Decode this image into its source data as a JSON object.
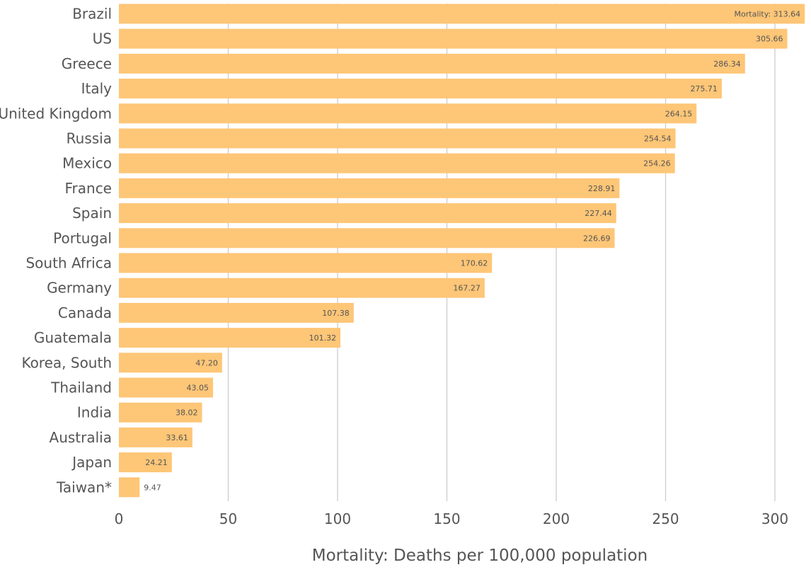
{
  "chart_data": {
    "type": "bar",
    "orientation": "horizontal",
    "categories": [
      "Brazil",
      "US",
      "Greece",
      "Italy",
      "United Kingdom",
      "Russia",
      "Mexico",
      "France",
      "Spain",
      "Portugal",
      "South Africa",
      "Germany",
      "Canada",
      "Guatemala",
      "Korea, South",
      "Thailand",
      "India",
      "Australia",
      "Japan",
      "Taiwan*"
    ],
    "values": [
      313.64,
      305.66,
      286.34,
      275.71,
      264.15,
      254.54,
      254.26,
      228.91,
      227.44,
      226.69,
      170.62,
      167.27,
      107.38,
      101.32,
      47.2,
      43.05,
      38.02,
      33.61,
      24.21,
      9.47
    ],
    "value_labels": [
      "Mortality: 313.64",
      "305.66",
      "286.34",
      "275.71",
      "264.15",
      "254.54",
      "254.26",
      "228.91",
      "227.44",
      "226.69",
      "170.62",
      "167.27",
      "107.38",
      "101.32",
      "47.20",
      "43.05",
      "38.02",
      "33.61",
      "24.21",
      "9.47"
    ],
    "xticks": [
      "0",
      "50",
      "100",
      "150",
      "200",
      "250",
      "300"
    ],
    "xtick_values": [
      0,
      50,
      100,
      150,
      200,
      250,
      300
    ],
    "xlim": [
      0,
      313.64
    ],
    "xlabel": "Mortality: Deaths per 100,000 population",
    "title": "",
    "grid": "vertical",
    "colors": {
      "bar": "#fec677",
      "grid": "#cccccc",
      "text": "#555555"
    }
  }
}
